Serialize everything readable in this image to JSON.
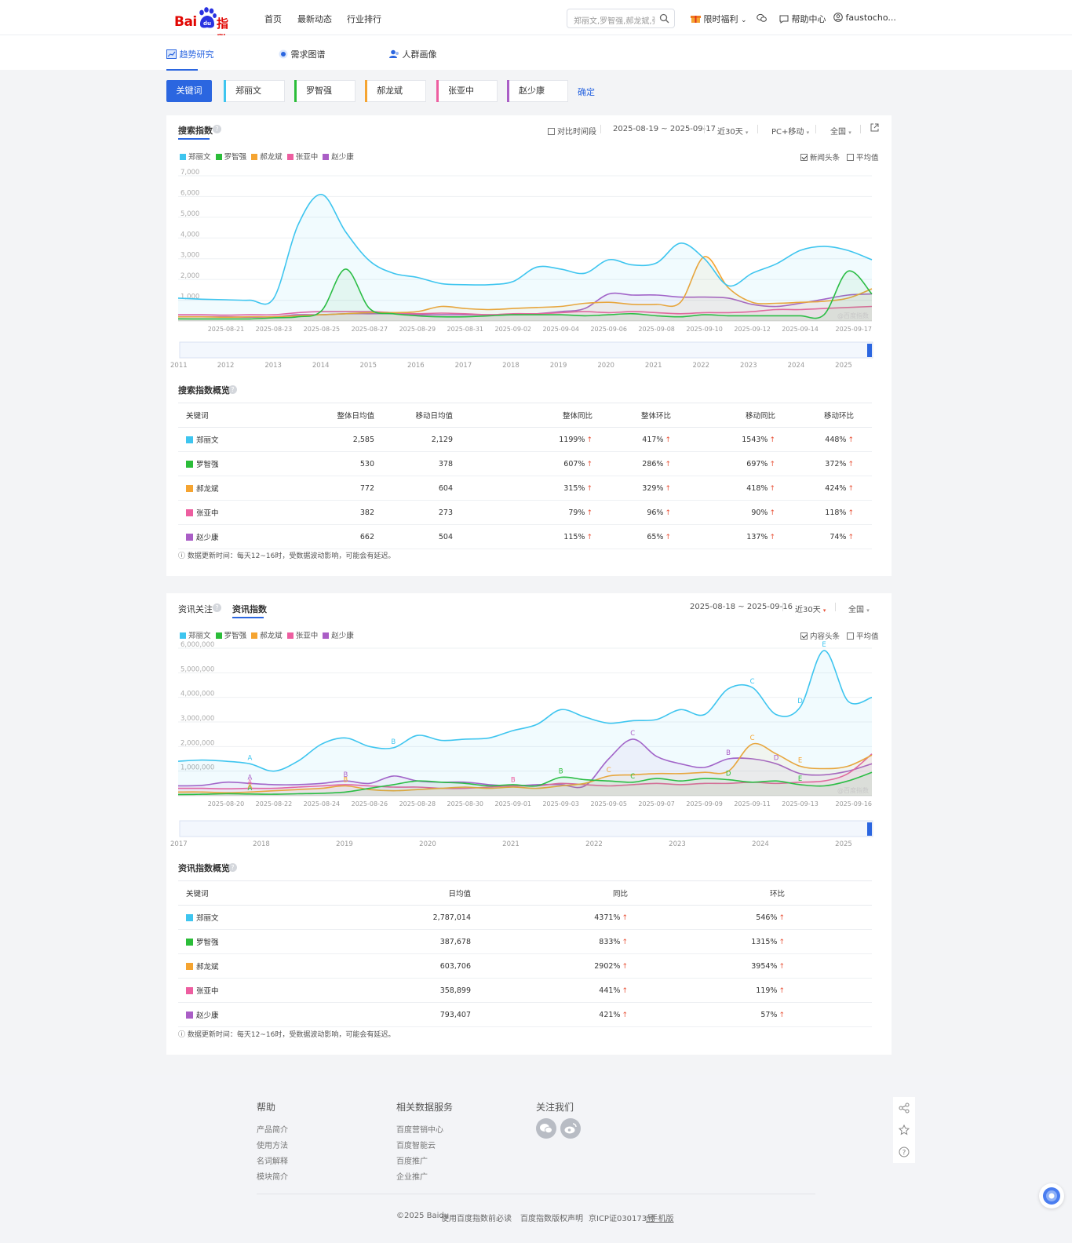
{
  "header": {
    "logo": {
      "bai": "Bai",
      "du": "du",
      "zhi": "指数"
    },
    "nav": [
      "首页",
      "最新动态",
      "行业排行"
    ],
    "search_placeholder": "郑丽文,罗智强,郝龙斌,张",
    "benefit": "限时福利",
    "help": "帮助中心",
    "user": "faustocho..."
  },
  "subnav": [
    "趋势研究",
    "需求图谱",
    "人群画像"
  ],
  "keywords": {
    "button": "关键词",
    "items": [
      {
        "name": "郑丽文",
        "color": "#3ec5ef"
      },
      {
        "name": "罗智强",
        "color": "#2bbd39"
      },
      {
        "name": "郝龙斌",
        "color": "#f5a431"
      },
      {
        "name": "张亚中",
        "color": "#ed5ea0"
      },
      {
        "name": "赵少康",
        "color": "#aa5ec6"
      }
    ],
    "confirm": "确定"
  },
  "search_index": {
    "tab": "搜索指数",
    "compare": "对比时间段",
    "date_range": "2025-08-19 ~ 2025-09-17",
    "period": "近30天",
    "device": "PC+移动",
    "region": "全国",
    "opt_news": "新闻头条",
    "opt_avg": "平均值",
    "watermark": "@百度指数",
    "overview_title": "搜索指数概览",
    "columns": [
      "关键词",
      "整体日均值",
      "移动日均值",
      "整体同比",
      "整体环比",
      "移动同比",
      "移动环比"
    ],
    "rows": [
      [
        "郑丽文",
        "2,585",
        "2,129",
        "1199%",
        "417%",
        "1543%",
        "448%"
      ],
      [
        "罗智强",
        "530",
        "378",
        "607%",
        "286%",
        "697%",
        "372%"
      ],
      [
        "郝龙斌",
        "772",
        "604",
        "315%",
        "329%",
        "418%",
        "424%"
      ],
      [
        "张亚中",
        "382",
        "273",
        "79%",
        "96%",
        "90%",
        "118%"
      ],
      [
        "赵少康",
        "662",
        "504",
        "115%",
        "65%",
        "137%",
        "74%"
      ]
    ],
    "note": "数据更新时间：每天12~16时，受数据波动影响，可能会有延迟。",
    "timeline_years": [
      "2011",
      "2012",
      "2013",
      "2014",
      "2015",
      "2016",
      "2017",
      "2018",
      "2019",
      "2020",
      "2021",
      "2022",
      "2023",
      "2024",
      "2025"
    ]
  },
  "news_index": {
    "tab1": "资讯关注",
    "tab2": "资讯指数",
    "date_range": "2025-08-18 ~ 2025-09-16",
    "period": "近30天",
    "region": "全国",
    "opt_news": "内容头条",
    "opt_avg": "平均值",
    "watermark": "@百度指数",
    "overview_title": "资讯指数概览",
    "columns": [
      "关键词",
      "日均值",
      "同比",
      "环比"
    ],
    "rows": [
      [
        "郑丽文",
        "2,787,014",
        "4371%",
        "546%"
      ],
      [
        "罗智强",
        "387,678",
        "833%",
        "1315%"
      ],
      [
        "郝龙斌",
        "603,706",
        "2902%",
        "3954%"
      ],
      [
        "张亚中",
        "358,899",
        "441%",
        "119%"
      ],
      [
        "赵少康",
        "793,407",
        "421%",
        "57%"
      ]
    ],
    "note": "数据更新时间：每天12~16时，受数据波动影响，可能会有延迟。",
    "timeline_years": [
      "2017",
      "2018",
      "2019",
      "2020",
      "2021",
      "2022",
      "2023",
      "2024",
      "2025"
    ]
  },
  "chart_data": [
    {
      "type": "line",
      "ylim": [
        0,
        7000
      ],
      "yticks": [
        "1,000",
        "2,000",
        "3,000",
        "4,000",
        "5,000",
        "6,000",
        "7,000"
      ],
      "xticks": [
        "2025-08-21",
        "2025-08-23",
        "2025-08-25",
        "2025-08-27",
        "2025-08-29",
        "2025-08-31",
        "2025-09-02",
        "2025-09-04",
        "2025-09-06",
        "2025-09-08",
        "2025-09-10",
        "2025-09-12",
        "2025-09-14",
        "2025-09-17"
      ],
      "x": [
        "2025-08-19",
        "2025-08-20",
        "2025-08-21",
        "2025-08-22",
        "2025-08-23",
        "2025-08-24",
        "2025-08-25",
        "2025-08-26",
        "2025-08-27",
        "2025-08-28",
        "2025-08-29",
        "2025-08-30",
        "2025-08-31",
        "2025-09-01",
        "2025-09-02",
        "2025-09-03",
        "2025-09-04",
        "2025-09-05",
        "2025-09-06",
        "2025-09-07",
        "2025-09-08",
        "2025-09-09",
        "2025-09-10",
        "2025-09-11",
        "2025-09-12",
        "2025-09-13",
        "2025-09-14",
        "2025-09-15",
        "2025-09-16",
        "2025-09-17"
      ],
      "series": [
        {
          "name": "郑丽文",
          "values": [
            1100,
            1050,
            1020,
            1000,
            1100,
            4600,
            6100,
            4300,
            2900,
            2300,
            2100,
            1800,
            1750,
            1750,
            1900,
            2600,
            2500,
            2300,
            2950,
            2700,
            2800,
            3750,
            3000,
            1700,
            2300,
            2750,
            3400,
            3600,
            3400,
            2950
          ]
        },
        {
          "name": "罗智强",
          "values": [
            100,
            100,
            100,
            100,
            150,
            200,
            500,
            2500,
            600,
            350,
            250,
            200,
            200,
            250,
            300,
            300,
            300,
            250,
            300,
            350,
            250,
            200,
            300,
            250,
            250,
            250,
            250,
            300,
            2400,
            1300
          ]
        },
        {
          "name": "郝龙斌",
          "values": [
            200,
            200,
            180,
            200,
            200,
            250,
            300,
            350,
            400,
            400,
            450,
            700,
            600,
            550,
            600,
            650,
            700,
            850,
            900,
            800,
            800,
            900,
            3100,
            1600,
            900,
            850,
            900,
            950,
            1100,
            1550
          ]
        },
        {
          "name": "张亚中",
          "values": [
            300,
            300,
            280,
            300,
            300,
            400,
            450,
            450,
            450,
            400,
            350,
            380,
            350,
            300,
            350,
            350,
            400,
            450,
            400,
            450,
            400,
            350,
            400,
            400,
            450,
            550,
            550,
            600,
            650,
            700
          ]
        },
        {
          "name": "赵少康",
          "values": [
            200,
            200,
            200,
            180,
            200,
            300,
            300,
            350,
            350,
            350,
            300,
            300,
            300,
            300,
            300,
            350,
            450,
            600,
            1300,
            1250,
            1250,
            1150,
            1150,
            1100,
            800,
            700,
            850,
            1050,
            1250,
            1300
          ]
        }
      ]
    },
    {
      "type": "line",
      "ylim": [
        0,
        6000000
      ],
      "yticks": [
        "1,000,000",
        "2,000,000",
        "3,000,000",
        "4,000,000",
        "5,000,000",
        "6,000,000"
      ],
      "xticks": [
        "2025-08-20",
        "2025-08-22",
        "2025-08-24",
        "2025-08-26",
        "2025-08-28",
        "2025-08-30",
        "2025-09-01",
        "2025-09-03",
        "2025-09-05",
        "2025-09-07",
        "2025-09-09",
        "2025-09-11",
        "2025-09-13",
        "2025-09-16"
      ],
      "x": [
        "2025-08-18",
        "2025-08-19",
        "2025-08-20",
        "2025-08-21",
        "2025-08-22",
        "2025-08-23",
        "2025-08-24",
        "2025-08-25",
        "2025-08-26",
        "2025-08-27",
        "2025-08-28",
        "2025-08-29",
        "2025-08-30",
        "2025-08-31",
        "2025-09-01",
        "2025-09-02",
        "2025-09-03",
        "2025-09-04",
        "2025-09-05",
        "2025-09-06",
        "2025-09-07",
        "2025-09-08",
        "2025-09-09",
        "2025-09-10",
        "2025-09-11",
        "2025-09-12",
        "2025-09-13",
        "2025-09-14",
        "2025-09-15",
        "2025-09-16"
      ],
      "annotations": [
        {
          "series": 0,
          "index": 3,
          "label": "A"
        },
        {
          "series": 0,
          "index": 9,
          "label": "B"
        },
        {
          "series": 0,
          "index": 24,
          "label": "C"
        },
        {
          "series": 0,
          "index": 26,
          "label": "D"
        },
        {
          "series": 0,
          "index": 27,
          "label": "E"
        },
        {
          "series": 1,
          "index": 3,
          "label": "A"
        },
        {
          "series": 1,
          "index": 16,
          "label": "B"
        },
        {
          "series": 1,
          "index": 19,
          "label": "C"
        },
        {
          "series": 1,
          "index": 23,
          "label": "D"
        },
        {
          "series": 1,
          "index": 26,
          "label": "E"
        },
        {
          "series": 2,
          "index": 3,
          "label": "A"
        },
        {
          "series": 2,
          "index": 7,
          "label": "B"
        },
        {
          "series": 2,
          "index": 18,
          "label": "C"
        },
        {
          "series": 2,
          "index": 24,
          "label": "C"
        },
        {
          "series": 2,
          "index": 26,
          "label": "E"
        },
        {
          "series": 3,
          "index": 3,
          "label": "A"
        },
        {
          "series": 3,
          "index": 14,
          "label": "B"
        },
        {
          "series": 4,
          "index": 3,
          "label": "A"
        },
        {
          "series": 4,
          "index": 7,
          "label": "B"
        },
        {
          "series": 4,
          "index": 19,
          "label": "C"
        },
        {
          "series": 4,
          "index": 23,
          "label": "B"
        },
        {
          "series": 4,
          "index": 25,
          "label": "D"
        }
      ],
      "series": [
        {
          "name": "郑丽文",
          "values": [
            1400000,
            1450000,
            1400000,
            1300000,
            1000000,
            1400000,
            2100000,
            2350000,
            2000000,
            1950000,
            2450000,
            2250000,
            2300000,
            2350000,
            2650000,
            2900000,
            3500000,
            3200000,
            2950000,
            3050000,
            3100000,
            3500000,
            3300000,
            4350000,
            4400000,
            3300000,
            3600000,
            5900000,
            3850000,
            4000000
          ]
        },
        {
          "name": "罗智强",
          "values": [
            50000,
            60000,
            80000,
            70000,
            60000,
            80000,
            100000,
            150000,
            300000,
            450000,
            600000,
            550000,
            500000,
            400000,
            450000,
            400000,
            750000,
            650000,
            600000,
            550000,
            700000,
            600000,
            700000,
            650000,
            550000,
            600000,
            450000,
            400000,
            600000,
            950000
          ]
        },
        {
          "name": "郝龙斌",
          "values": [
            150000,
            150000,
            120000,
            150000,
            200000,
            250000,
            300000,
            400000,
            250000,
            200000,
            250000,
            300000,
            350000,
            300000,
            350000,
            300000,
            400000,
            500000,
            800000,
            850000,
            900000,
            900000,
            950000,
            1000000,
            2100000,
            1700000,
            1200000,
            1100000,
            1200000,
            1650000
          ]
        },
        {
          "name": "张亚中",
          "values": [
            300000,
            300000,
            280000,
            300000,
            300000,
            350000,
            400000,
            450000,
            400000,
            350000,
            350000,
            300000,
            300000,
            350000,
            400000,
            400000,
            500000,
            450000,
            400000,
            450000,
            500000,
            450000,
            500000,
            500000,
            550000,
            500000,
            550000,
            600000,
            900000,
            1700000
          ]
        },
        {
          "name": "赵少康",
          "values": [
            400000,
            420000,
            550000,
            500000,
            450000,
            450000,
            500000,
            600000,
            500000,
            800000,
            600000,
            550000,
            550000,
            450000,
            400000,
            450000,
            450000,
            400000,
            1500000,
            2300000,
            1600000,
            1300000,
            1150000,
            1500000,
            1500000,
            1300000,
            900000,
            850000,
            1000000,
            1300000
          ]
        }
      ]
    }
  ]
}
